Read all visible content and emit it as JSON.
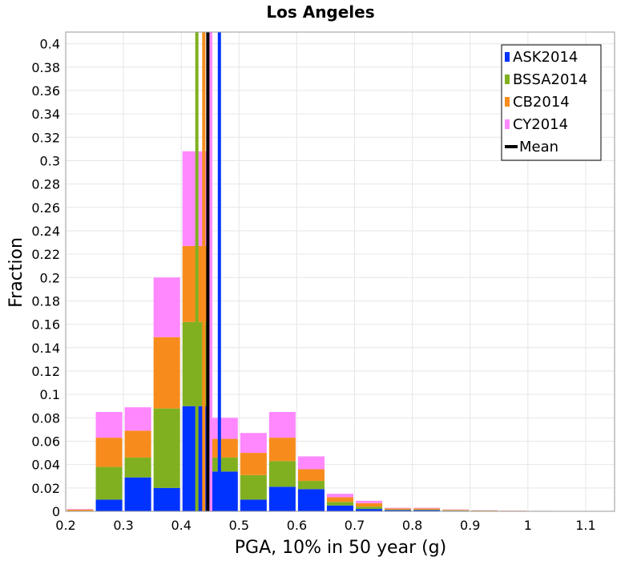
{
  "chart_data": {
    "type": "bar",
    "stacked": true,
    "title": "Los Angeles",
    "xlabel": "PGA, 10% in 50 year (g)",
    "ylabel": "Fraction",
    "xlim": [
      0.2,
      1.15
    ],
    "ylim": [
      0,
      0.41
    ],
    "grid": true,
    "legend_position": "top-right",
    "x_ticks": [
      "0.2",
      "0.3",
      "0.4",
      "0.5",
      "0.6",
      "0.7",
      "0.8",
      "0.9",
      "1",
      "1.1"
    ],
    "x_tick_values": [
      0.2,
      0.3,
      0.4,
      0.5,
      0.6,
      0.7,
      0.8,
      0.9,
      1.0,
      1.1
    ],
    "y_ticks": [
      "0",
      "0.02",
      "0.04",
      "0.06",
      "0.08",
      "0.1",
      "0.12",
      "0.14",
      "0.16",
      "0.18",
      "0.2",
      "0.22",
      "0.24",
      "0.26",
      "0.28",
      "0.3",
      "0.32",
      "0.34",
      "0.36",
      "0.38",
      "0.4"
    ],
    "y_tick_values": [
      0,
      0.02,
      0.04,
      0.06,
      0.08,
      0.1,
      0.12,
      0.14,
      0.16,
      0.18,
      0.2,
      0.22,
      0.24,
      0.26,
      0.28,
      0.3,
      0.32,
      0.34,
      0.36,
      0.38,
      0.4
    ],
    "bin_width": 0.05,
    "bin_starts": [
      0.2,
      0.25,
      0.3,
      0.35,
      0.4,
      0.45,
      0.5,
      0.55,
      0.6,
      0.65,
      0.7,
      0.75,
      0.8,
      0.85,
      0.9,
      0.95,
      1.0,
      1.05,
      1.1
    ],
    "series": [
      {
        "name": "ASK2014",
        "color": "#0033ff",
        "values": [
          0.0,
          0.01,
          0.029,
          0.02,
          0.09,
          0.034,
          0.01,
          0.021,
          0.019,
          0.005,
          0.002,
          0.001,
          0.001,
          0.0005,
          0.0003,
          0.0002,
          0.0001,
          0.0001,
          0.0
        ]
      },
      {
        "name": "BSSA2014",
        "color": "#80b020",
        "values": [
          0.0005,
          0.028,
          0.017,
          0.068,
          0.072,
          0.012,
          0.021,
          0.022,
          0.007,
          0.003,
          0.002,
          0.0005,
          0.0005,
          0.0003,
          0.0002,
          0.0001,
          0.0001,
          0.0,
          0.0
        ]
      },
      {
        "name": "CB2014",
        "color": "#f78c1c",
        "values": [
          0.001,
          0.025,
          0.023,
          0.061,
          0.065,
          0.016,
          0.019,
          0.02,
          0.01,
          0.004,
          0.003,
          0.001,
          0.001,
          0.0005,
          0.0003,
          0.0002,
          0.0001,
          0.0001,
          0.0
        ]
      },
      {
        "name": "CY2014",
        "color": "#ff88ff",
        "values": [
          0.0005,
          0.022,
          0.02,
          0.051,
          0.081,
          0.018,
          0.017,
          0.022,
          0.011,
          0.003,
          0.002,
          0.0005,
          0.0005,
          0.0003,
          0.0002,
          0.0001,
          0.0001,
          0.0,
          0.0
        ]
      }
    ],
    "mean_lines": [
      {
        "name": "ASK2014",
        "x": 0.466,
        "color": "#0033ff"
      },
      {
        "name": "BSSA2014",
        "x": 0.427,
        "color": "#80b020"
      },
      {
        "name": "CB2014",
        "x": 0.439,
        "color": "#f78c1c"
      },
      {
        "name": "CY2014",
        "x": 0.451,
        "color": "#ff88ff"
      },
      {
        "name": "Mean",
        "x": 0.446,
        "color": "#000000"
      }
    ],
    "legend": [
      {
        "label": "ASK2014",
        "color": "#0033ff",
        "kind": "box"
      },
      {
        "label": "BSSA2014",
        "color": "#80b020",
        "kind": "box"
      },
      {
        "label": "CB2014",
        "color": "#f78c1c",
        "kind": "box"
      },
      {
        "label": "CY2014",
        "color": "#ff88ff",
        "kind": "box"
      },
      {
        "label": "Mean",
        "color": "#000000",
        "kind": "line"
      }
    ]
  }
}
